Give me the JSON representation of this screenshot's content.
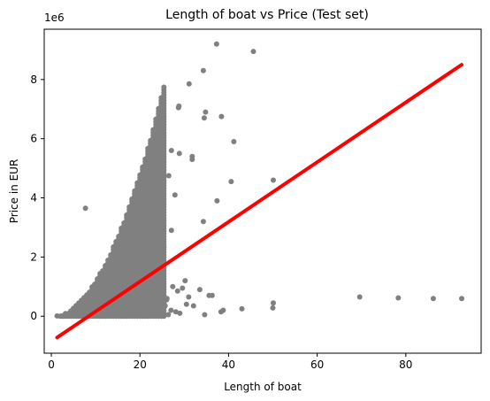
{
  "chart_data": {
    "type": "scatter",
    "title": "Length of boat vs Price (Test set)",
    "xlabel": "Length of boat",
    "ylabel": "Price in EUR",
    "y_offset_label": "1e6",
    "xlim": [
      -1.6,
      97
    ],
    "ylim": [
      -1.25,
      9.7
    ],
    "y_scale_factor": 1000000,
    "xticks": [
      0,
      20,
      40,
      60,
      80
    ],
    "yticks": [
      0,
      2,
      4,
      6,
      8
    ],
    "grid": false,
    "colors": {
      "points": "#808080",
      "fit_line": "#ff0000"
    },
    "series": [
      {
        "kind": "points",
        "x": [
          37.3,
          45.6,
          34.3,
          31.1,
          28.8,
          28.7,
          34.8,
          34.5,
          38.4,
          41.2,
          27.1,
          28.9,
          31.8,
          31.8,
          26.5,
          40.6,
          50.1,
          24.0,
          27.9,
          22.5,
          37.4,
          34.3,
          25.0,
          23.9,
          23.1,
          22.0,
          22.4,
          22.1,
          7.7,
          27.1,
          22.6,
          24.8,
          21.5,
          25.4,
          18.4,
          20.2,
          25.1,
          22.3,
          24.6,
          18.9,
          21.0,
          19.5,
          23.2,
          20.4,
          18.0,
          16.5,
          21.8,
          19.0,
          23.0,
          17.6,
          22.7,
          20.8,
          30.2,
          27.4,
          29.6,
          33.5,
          28.5,
          35.6,
          31.0,
          36.3,
          26.1,
          24.4,
          30.5,
          32.1,
          38.8,
          38.3,
          43.0,
          34.6,
          50.1,
          50.0,
          69.6,
          78.3,
          86.2,
          92.6,
          8.1,
          8.5,
          9.6,
          11.2,
          12.0,
          13.1,
          14.3,
          15.0,
          16.1,
          17.2,
          18.5,
          19.3,
          20.1,
          21.4,
          22.8,
          23.5,
          24.9,
          26.0,
          19.7,
          17.9,
          16.4,
          15.2,
          13.8,
          12.6,
          11.0,
          10.2,
          9.1,
          7.4,
          6.2,
          5.3,
          4.4,
          3.8,
          2.9,
          1.3,
          14.7,
          16.8,
          18.1,
          19.9,
          21.2,
          22.5,
          20.6,
          18.8,
          17.0,
          15.6,
          14.0,
          12.9,
          11.7,
          10.5,
          9.8,
          8.8,
          24.2,
          25.7,
          27.0,
          28.1,
          29.0,
          26.4,
          23.7,
          21.9,
          20.3,
          12.3,
          13.5,
          14.9,
          16.2,
          17.5,
          18.7,
          19.4,
          20.9,
          15.8,
          14.4,
          13.2,
          6.8,
          5.8,
          4.9,
          3.5,
          2.4,
          7.0,
          10.8,
          11.5,
          16.6,
          18.3,
          19.1,
          17.4
        ],
        "y": [
          9.2,
          8.95,
          8.3,
          7.85,
          7.1,
          7.05,
          6.9,
          6.7,
          6.75,
          5.9,
          5.6,
          5.5,
          5.4,
          5.3,
          4.75,
          4.55,
          4.6,
          4.4,
          4.1,
          4.1,
          3.9,
          3.2,
          3.7,
          3.6,
          3.4,
          3.8,
          3.3,
          3.2,
          3.65,
          2.9,
          2.6,
          2.5,
          2.45,
          2.35,
          2.3,
          2.2,
          2.2,
          2.0,
          1.9,
          1.8,
          1.75,
          1.6,
          1.6,
          1.5,
          1.4,
          1.5,
          1.3,
          1.2,
          1.1,
          1.05,
          0.95,
          0.9,
          1.2,
          1.0,
          0.95,
          0.9,
          0.85,
          0.7,
          0.65,
          0.7,
          0.6,
          0.55,
          0.4,
          0.35,
          0.2,
          0.15,
          0.25,
          0.05,
          0.45,
          0.28,
          0.65,
          0.62,
          0.6,
          0.6,
          0.05,
          0.1,
          0.12,
          0.2,
          0.3,
          0.45,
          0.6,
          0.75,
          0.85,
          0.95,
          1.05,
          1.25,
          0.4,
          0.5,
          0.35,
          0.45,
          0.3,
          0.55,
          0.7,
          0.6,
          0.5,
          0.35,
          0.25,
          0.2,
          0.15,
          0.1,
          0.08,
          0.05,
          0.04,
          0.03,
          0.02,
          0.02,
          0.01,
          0.01,
          0.15,
          0.3,
          0.2,
          0.15,
          0.1,
          0.05,
          0.8,
          1.0,
          0.65,
          0.45,
          0.3,
          0.22,
          0.18,
          0.14,
          0.09,
          0.06,
          0.25,
          0.35,
          0.2,
          0.15,
          0.1,
          0.05,
          0.12,
          0.08,
          0.04,
          0.55,
          0.7,
          0.4,
          0.3,
          0.6,
          0.45,
          0.9,
          1.1,
          1.3,
          0.85,
          0.65,
          0.03,
          0.02,
          0.02,
          0.01,
          0.01,
          0.05,
          0.3,
          0.4,
          1.6,
          1.45,
          1.7,
          1.15
        ]
      },
      {
        "kind": "line",
        "x": [
          1.3,
          92.6
        ],
        "y": [
          -0.72,
          8.5
        ]
      }
    ]
  }
}
